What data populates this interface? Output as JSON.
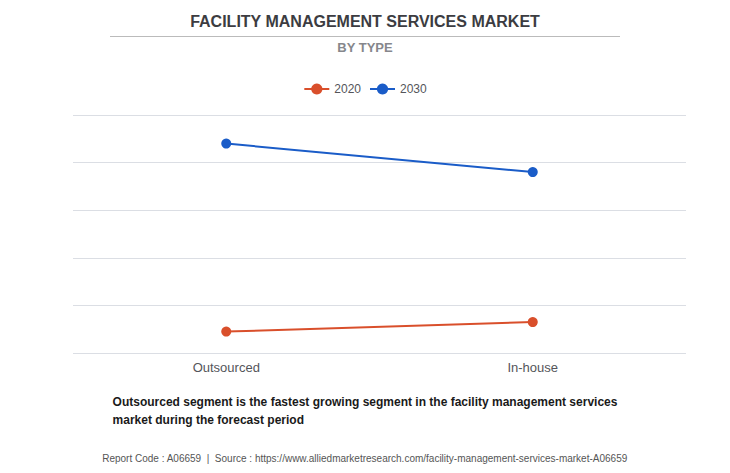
{
  "chart_data": {
    "type": "line",
    "title": "FACILITY MANAGEMENT SERVICES MARKET",
    "subtitle": "BY TYPE",
    "categories": [
      "Outsourced",
      "In-house"
    ],
    "series": [
      {
        "name": "2020",
        "color": "#D94F2B",
        "values": [
          0.09,
          0.13
        ]
      },
      {
        "name": "2030",
        "color": "#1A5CC8",
        "values": [
          0.88,
          0.76
        ]
      }
    ],
    "ylim": [
      0,
      1.0
    ],
    "yticks": [
      0,
      0.2,
      0.4,
      0.6,
      0.8,
      1.0
    ],
    "grid": true,
    "legend": "top",
    "marker": "circle",
    "tick_labels": "x",
    "annotations": [
      "Outsourced segment is the fastest growing segment in the facility management services\nmarket during the forecast period",
      "Report Code : A06659  |  Source : https://www.alliedmarketresearch.com/facility-management-services-market-A06659"
    ]
  }
}
